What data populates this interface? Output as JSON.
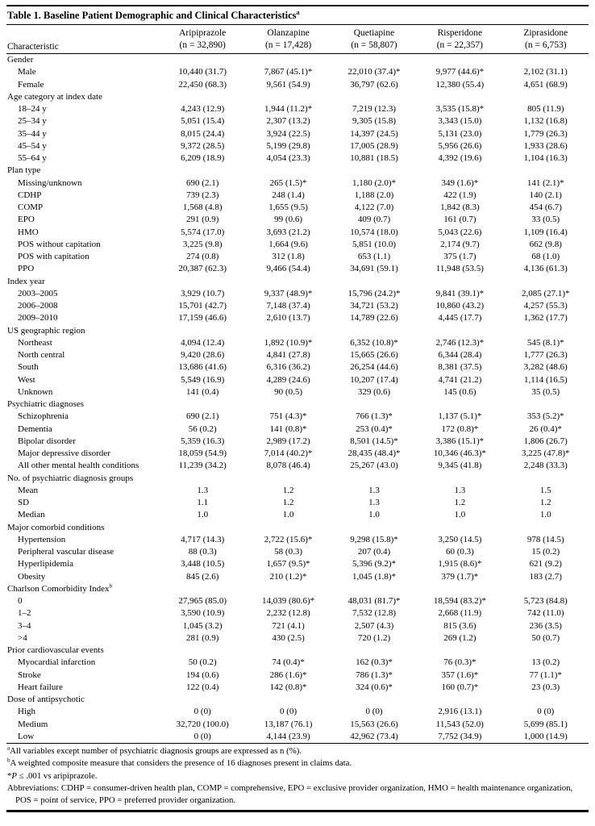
{
  "table": {
    "title": "Table 1. Baseline Patient Demographic and Clinical Characteristics",
    "title_sup": "a",
    "characteristic_header": "Characteristic",
    "columns": [
      {
        "name": "Aripiprazole",
        "n": "(n = 32,890)"
      },
      {
        "name": "Olanzapine",
        "n": "(n = 17,428)"
      },
      {
        "name": "Quetiapine",
        "n": "(n = 58,807)"
      },
      {
        "name": "Risperidone",
        "n": "(n = 22,357)"
      },
      {
        "name": "Ziprasidone",
        "n": "(n = 6,753)"
      }
    ],
    "rows": [
      {
        "type": "section",
        "label": "Gender"
      },
      {
        "type": "data",
        "label": "Male",
        "values": [
          "10,440 (31.7)",
          "7,867 (45.1)*",
          "22,010 (37.4)*",
          "9,977 (44.6)*",
          "2,102 (31.1)"
        ]
      },
      {
        "type": "data",
        "label": "Female",
        "values": [
          "22,450 (68.3)",
          "9,561 (54.9)",
          "36,797 (62.6)",
          "12,380 (55.4)",
          "4,651 (68.9)"
        ]
      },
      {
        "type": "section",
        "label": "Age category at index date"
      },
      {
        "type": "data",
        "label": "18–24 y",
        "values": [
          "4,243 (12.9)",
          "1,944 (11.2)*",
          "7,219 (12.3)",
          "3,535 (15.8)*",
          "805 (11.9)"
        ]
      },
      {
        "type": "data",
        "label": "25–34 y",
        "values": [
          "5,051 (15.4)",
          "2,307 (13.2)",
          "9,305 (15.8)",
          "3,343 (15.0)",
          "1,132 (16.8)"
        ]
      },
      {
        "type": "data",
        "label": "35–44 y",
        "values": [
          "8,015 (24.4)",
          "3,924 (22.5)",
          "14,397 (24.5)",
          "5,131 (23.0)",
          "1,779 (26.3)"
        ]
      },
      {
        "type": "data",
        "label": "45–54 y",
        "values": [
          "9,372 (28.5)",
          "5,199 (29.8)",
          "17,005 (28.9)",
          "5,956 (26.6)",
          "1,933 (28.6)"
        ]
      },
      {
        "type": "data",
        "label": "55–64 y",
        "values": [
          "6,209 (18.9)",
          "4,054 (23.3)",
          "10,881 (18.5)",
          "4,392 (19.6)",
          "1,104 (16.3)"
        ]
      },
      {
        "type": "section",
        "label": "Plan type"
      },
      {
        "type": "data",
        "label": "Missing/unknown",
        "values": [
          "690 (2.1)",
          "265 (1.5)*",
          "1,180 (2.0)*",
          "349 (1.6)*",
          "141 (2.1)*"
        ]
      },
      {
        "type": "data",
        "label": "CDHP",
        "values": [
          "739 (2.3)",
          "248 (1.4)",
          "1,188 (2.0)",
          "422 (1.9)",
          "140 (2.1)"
        ]
      },
      {
        "type": "data",
        "label": "COMP",
        "values": [
          "1,568 (4.8)",
          "1,655 (9.5)",
          "4,122 (7.0)",
          "1,842 (8.3)",
          "454 (6.7)"
        ]
      },
      {
        "type": "data",
        "label": "EPO",
        "values": [
          "291 (0.9)",
          "99 (0.6)",
          "409 (0.7)",
          "161 (0.7)",
          "33 (0.5)"
        ]
      },
      {
        "type": "data",
        "label": "HMO",
        "values": [
          "5,574 (17.0)",
          "3,693 (21.2)",
          "10,574 (18.0)",
          "5,043 (22.6)",
          "1,109 (16.4)"
        ]
      },
      {
        "type": "data",
        "label": "POS without capitation",
        "values": [
          "3,225 (9.8)",
          "1,664 (9.6)",
          "5,851 (10.0)",
          "2,174 (9.7)",
          "662 (9.8)"
        ]
      },
      {
        "type": "data",
        "label": "POS with capitation",
        "values": [
          "274 (0.8)",
          "312 (1.8)",
          "653 (1.1)",
          "375 (1.7)",
          "68 (1.0)"
        ]
      },
      {
        "type": "data",
        "label": "PPO",
        "values": [
          "20,387 (62.3)",
          "9,466 (54.4)",
          "34,691 (59.1)",
          "11,948 (53.5)",
          "4,136 (61.3)"
        ]
      },
      {
        "type": "section",
        "label": "Index year"
      },
      {
        "type": "data",
        "label": "2003–2005",
        "values": [
          "3,929 (10.7)",
          "9,337 (48.9)*",
          "15,796 (24.2)*",
          "9,841 (39.1)*",
          "2,085 (27.1)*"
        ]
      },
      {
        "type": "data",
        "label": "2006–2008",
        "values": [
          "15,701 (42.7)",
          "7,148 (37.4)",
          "34,721 (53.2)",
          "10,860 (43.2)",
          "4,257 (55.3)"
        ]
      },
      {
        "type": "data",
        "label": "2009–2010",
        "values": [
          "17,159 (46.6)",
          "2,610 (13.7)",
          "14,789 (22.6)",
          "4,445 (17.7)",
          "1,362 (17.7)"
        ]
      },
      {
        "type": "section",
        "label": "US geographic region"
      },
      {
        "type": "data",
        "label": "Northeast",
        "values": [
          "4,094 (12.4)",
          "1,892 (10.9)*",
          "6,352 (10.8)*",
          "2,746 (12.3)*",
          "545 (8.1)*"
        ]
      },
      {
        "type": "data",
        "label": "North central",
        "values": [
          "9,420 (28.6)",
          "4,841 (27.8)",
          "15,665 (26.6)",
          "6,344 (28.4)",
          "1,777 (26.3)"
        ]
      },
      {
        "type": "data",
        "label": "South",
        "values": [
          "13,686 (41.6)",
          "6,316 (36.2)",
          "26,254 (44.6)",
          "8,381 (37.5)",
          "3,282 (48.6)"
        ]
      },
      {
        "type": "data",
        "label": "West",
        "values": [
          "5,549 (16.9)",
          "4,289 (24.6)",
          "10,207 (17.4)",
          "4,741 (21.2)",
          "1,114 (16.5)"
        ]
      },
      {
        "type": "data",
        "label": "Unknown",
        "values": [
          "141 (0.4)",
          "90 (0.5)",
          "329 (0.6)",
          "145 (0.6)",
          "35 (0.5)"
        ]
      },
      {
        "type": "section",
        "label": "Psychiatric diagnoses"
      },
      {
        "type": "data",
        "label": "Schizophrenia",
        "values": [
          "690 (2.1)",
          "751 (4.3)*",
          "766 (1.3)*",
          "1,137 (5.1)*",
          "353 (5.2)*"
        ]
      },
      {
        "type": "data",
        "label": "Dementia",
        "values": [
          "56 (0.2)",
          "141 (0.8)*",
          "253 (0.4)*",
          "172 (0.8)*",
          "26 (0.4)*"
        ]
      },
      {
        "type": "data",
        "label": "Bipolar disorder",
        "values": [
          "5,359 (16.3)",
          "2,989 (17.2)",
          "8,501 (14.5)*",
          "3,386 (15.1)*",
          "1,806 (26.7)"
        ]
      },
      {
        "type": "data",
        "label": "Major depressive disorder",
        "values": [
          "18,059 (54.9)",
          "7,014 (40.2)*",
          "28,435 (48.4)*",
          "10,346 (46.3)*",
          "3,225 (47.8)*"
        ]
      },
      {
        "type": "data",
        "label": "All other mental health conditions",
        "values": [
          "11,239 (34.2)",
          "8,078 (46.4)",
          "25,267 (43.0)",
          "9,345 (41.8)",
          "2,248 (33.3)"
        ]
      },
      {
        "type": "section",
        "label": "No. of psychiatric diagnosis groups"
      },
      {
        "type": "data",
        "label": "Mean",
        "values": [
          "1.3",
          "1.2",
          "1.3",
          "1.3",
          "1.5"
        ]
      },
      {
        "type": "data",
        "label": "SD",
        "values": [
          "1.1",
          "1.2",
          "1.3",
          "1.2",
          "1.2"
        ]
      },
      {
        "type": "data",
        "label": "Median",
        "values": [
          "1.0",
          "1.0",
          "1.0",
          "1.0",
          "1.0"
        ]
      },
      {
        "type": "section",
        "label": "Major comorbid conditions"
      },
      {
        "type": "data",
        "label": "Hypertension",
        "values": [
          "4,717 (14.3)",
          "2,722 (15.6)*",
          "9,298 (15.8)*",
          "3,250 (14.5)",
          "978 (14.5)"
        ]
      },
      {
        "type": "data",
        "label": "Peripheral vascular disease",
        "values": [
          "88 (0.3)",
          "58 (0.3)",
          "207 (0.4)",
          "60 (0.3)",
          "15 (0.2)"
        ]
      },
      {
        "type": "data",
        "label": "Hyperlipidemia",
        "values": [
          "3,448 (10.5)",
          "1,657 (9.5)*",
          "5,396 (9.2)*",
          "1,915 (8.6)*",
          "621 (9.2)"
        ]
      },
      {
        "type": "data",
        "label": "Obesity",
        "values": [
          "845 (2.6)",
          "210 (1.2)*",
          "1,045 (1.8)*",
          "379 (1.7)*",
          "183 (2.7)"
        ]
      },
      {
        "type": "section",
        "label": "Charlson Comorbidity Index",
        "sup": "b"
      },
      {
        "type": "data",
        "label": "0",
        "values": [
          "27,965 (85.0)",
          "14,039 (80.6)*",
          "48,031 (81.7)*",
          "18,594 (83.2)*",
          "5,723 (84.8)"
        ]
      },
      {
        "type": "data",
        "label": "1–2",
        "values": [
          "3,590 (10.9)",
          "2,232 (12.8)",
          "7,532 (12.8)",
          "2,668 (11.9)",
          "742 (11.0)"
        ]
      },
      {
        "type": "data",
        "label": "3–4",
        "values": [
          "1,045 (3.2)",
          "721 (4.1)",
          "2,507 (4.3)",
          "815 (3.6)",
          "236 (3.5)"
        ]
      },
      {
        "type": "data",
        "label": ">4",
        "values": [
          "281 (0.9)",
          "430 (2.5)",
          "720 (1.2)",
          "269 (1.2)",
          "50 (0.7)"
        ]
      },
      {
        "type": "section",
        "label": "Prior cardiovascular events"
      },
      {
        "type": "data",
        "label": "Myocardial infarction",
        "values": [
          "50 (0.2)",
          "74 (0.4)*",
          "162 (0.3)*",
          "76 (0.3)*",
          "13 (0.2)"
        ]
      },
      {
        "type": "data",
        "label": "Stroke",
        "values": [
          "194 (0.6)",
          "286 (1.6)*",
          "786 (1.3)*",
          "357 (1.6)*",
          "77 (1.1)*"
        ]
      },
      {
        "type": "data",
        "label": "Heart failure",
        "values": [
          "122 (0.4)",
          "142 (0.8)*",
          "324 (0.6)*",
          "160 (0.7)*",
          "23 (0.3)"
        ]
      },
      {
        "type": "section",
        "label": "Dose of antipsychotic"
      },
      {
        "type": "data",
        "label": "High",
        "values": [
          "0 (0)",
          "0 (0)",
          "0 (0)",
          "2,916 (13.1)",
          "0 (0)"
        ]
      },
      {
        "type": "data",
        "label": "Medium",
        "values": [
          "32,720 (100.0)",
          "13,187 (76.1)",
          "15,563 (26.6)",
          "11,543 (52.0)",
          "5,699 (85.1)"
        ]
      },
      {
        "type": "data",
        "label": "Low",
        "values": [
          "0 (0)",
          "4,144 (23.9)",
          "42,962 (73.4)",
          "7,752 (34.9)",
          "1,000 (14.9)"
        ]
      }
    ],
    "footnotes": [
      {
        "sup": "a",
        "text": "All variables except number of psychiatric diagnosis groups are expressed as n (%)."
      },
      {
        "sup": "b",
        "text": "A weighted composite measure that considers the presence of 16 diagnoses present in claims data."
      },
      {
        "prefix": "*",
        "italic": "P",
        "text": " ≤ .001 vs aripiprazole."
      },
      {
        "text": "Abbreviations: CDHP = consumer-driven health plan, COMP = comprehensive, EPO = exclusive provider organization, HMO = health maintenance organization, POS = point of service, PPO = preferred provider organization."
      }
    ]
  }
}
